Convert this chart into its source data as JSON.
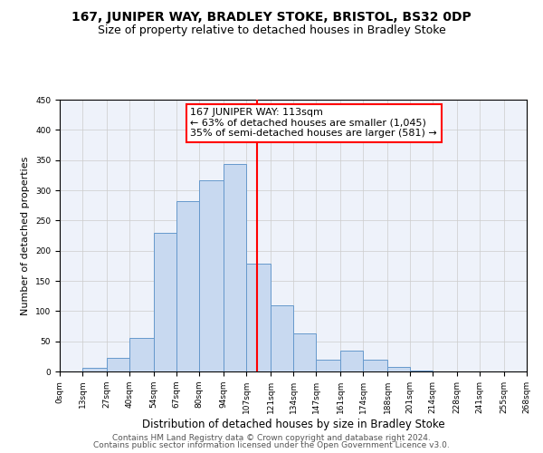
{
  "title": "167, JUNIPER WAY, BRADLEY STOKE, BRISTOL, BS32 0DP",
  "subtitle": "Size of property relative to detached houses in Bradley Stoke",
  "xlabel": "Distribution of detached houses by size in Bradley Stoke",
  "ylabel": "Number of detached properties",
  "bar_edges": [
    0,
    13,
    27,
    40,
    54,
    67,
    80,
    94,
    107,
    121,
    134,
    147,
    161,
    174,
    188,
    201,
    214,
    228,
    241,
    255,
    268
  ],
  "bar_heights": [
    0,
    6,
    22,
    55,
    230,
    282,
    317,
    343,
    178,
    110,
    63,
    19,
    35,
    20,
    7,
    1,
    0,
    0,
    0,
    0
  ],
  "bar_color": "#c8d9f0",
  "bar_edge_color": "#6699cc",
  "vline_x": 113,
  "vline_color": "red",
  "annotation_line1": "167 JUNIPER WAY: 113sqm",
  "annotation_line2": "← 63% of detached houses are smaller (1,045)",
  "annotation_line3": "35% of semi-detached houses are larger (581) →",
  "annotation_box_facecolor": "white",
  "annotation_box_edgecolor": "red",
  "ylim": [
    0,
    450
  ],
  "xlim": [
    0,
    268
  ],
  "xtick_labels": [
    "0sqm",
    "13sqm",
    "27sqm",
    "40sqm",
    "54sqm",
    "67sqm",
    "80sqm",
    "94sqm",
    "107sqm",
    "121sqm",
    "134sqm",
    "147sqm",
    "161sqm",
    "174sqm",
    "188sqm",
    "201sqm",
    "214sqm",
    "228sqm",
    "241sqm",
    "255sqm",
    "268sqm"
  ],
  "xtick_positions": [
    0,
    13,
    27,
    40,
    54,
    67,
    80,
    94,
    107,
    121,
    134,
    147,
    161,
    174,
    188,
    201,
    214,
    228,
    241,
    255,
    268
  ],
  "ytick_positions": [
    0,
    50,
    100,
    150,
    200,
    250,
    300,
    350,
    400,
    450
  ],
  "grid_color": "#cccccc",
  "background_color": "#eef2fa",
  "footer_line1": "Contains HM Land Registry data © Crown copyright and database right 2024.",
  "footer_line2": "Contains public sector information licensed under the Open Government Licence v3.0.",
  "title_fontsize": 10,
  "subtitle_fontsize": 9,
  "xlabel_fontsize": 8.5,
  "ylabel_fontsize": 8,
  "tick_fontsize": 6.5,
  "footer_fontsize": 6.5,
  "annotation_fontsize": 8
}
